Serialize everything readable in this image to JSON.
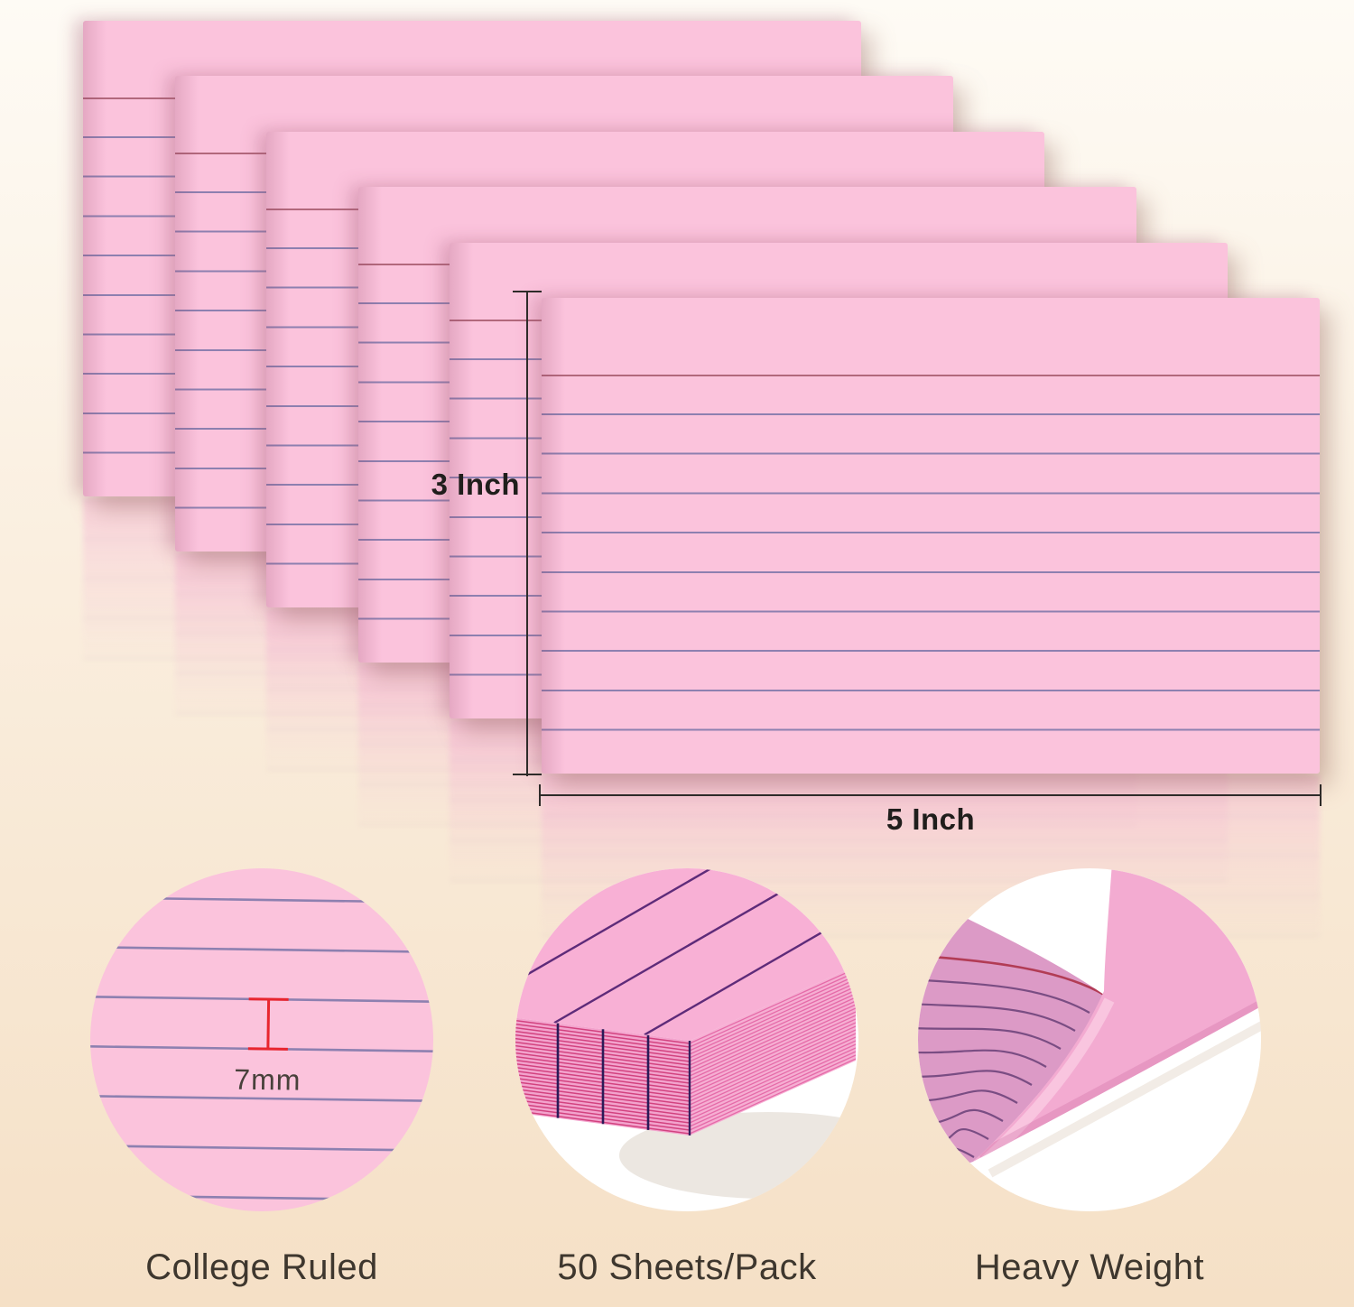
{
  "scene": {
    "description": "Six overlapping pink college-ruled 3x5 index cards with size annotations, above three circular feature close-ups"
  },
  "dimension_annotations": {
    "height_label": "3 Inch",
    "width_label": "5 Inch"
  },
  "cards": {
    "count": 6,
    "ruled_lines_per_card": 10,
    "first_line": "red",
    "body_lines": "purple"
  },
  "features": [
    {
      "id": "college-ruled",
      "label": "College Ruled",
      "annotation": "7mm",
      "icon": "ruled-card-detail"
    },
    {
      "id": "sheets-per-pack",
      "label": "50 Sheets/Pack",
      "icon": "card-stack-detail"
    },
    {
      "id": "heavy-weight",
      "label": "Heavy Weight",
      "icon": "curled-card-detail"
    }
  ],
  "colors": {
    "background_top": "#fefbf5",
    "background_mid": "#faeede",
    "background_bottom": "#f5e0c6",
    "card_pink": "#fbc3dc",
    "rule_red": "#b2687c",
    "rule_purple": "#8d80b0",
    "stack_top_pink": "#f8b0d5",
    "stack_side_pink": "#f3a3cd",
    "stack_stripe": "#d2427f",
    "stack_rule_dark": "#2b1a58",
    "stack_diag": "#5e2b79",
    "curl_face": "#dc9ac6",
    "curl_back": "#f3abd1",
    "curl_rule_red": "#b23c55",
    "curl_rule_purple": "#7a4d83",
    "measure_red": "#e8252e",
    "dimension_line": "#2e2b29",
    "text_dark": "#201e1c",
    "feature_text": "#3e372e"
  }
}
